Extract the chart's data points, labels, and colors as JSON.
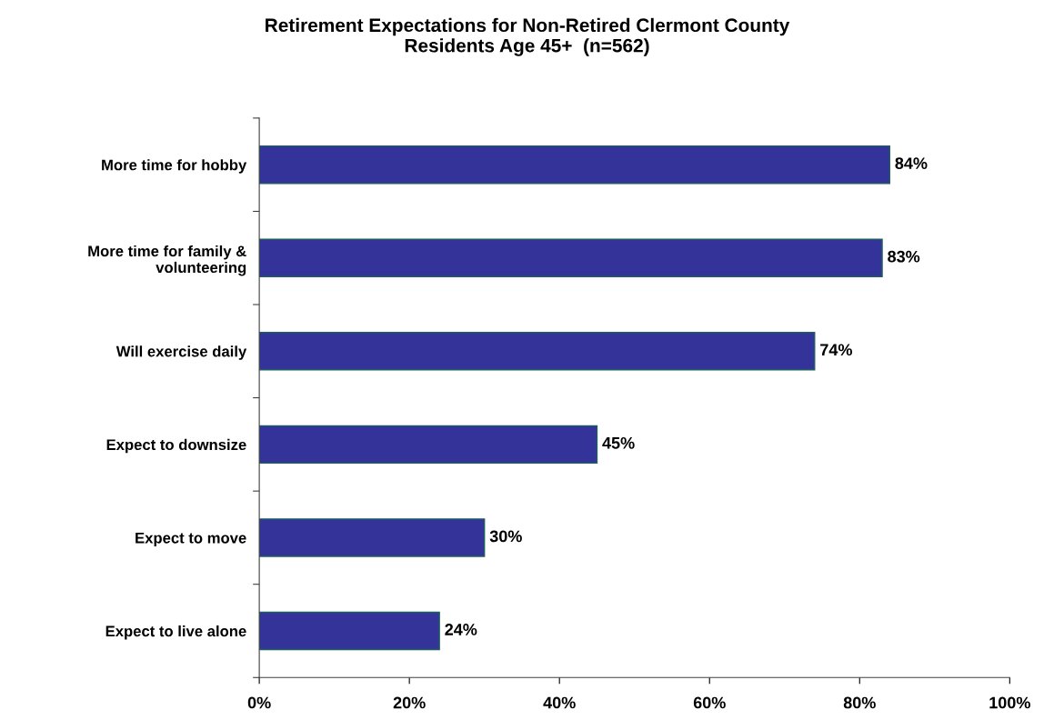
{
  "chart_data": {
    "type": "bar",
    "orientation": "horizontal",
    "title": "Retirement Expectations for Non-Retired Clermont County\nResidents Age 45+  (n=562)",
    "categories": [
      "More time for hobby",
      "More time for family &\nvolunteering",
      "Will exercise daily",
      "Expect to downsize",
      "Expect to move",
      "Expect to live alone"
    ],
    "values": [
      84,
      83,
      74,
      45,
      30,
      24
    ],
    "value_labels": [
      "84%",
      "83%",
      "74%",
      "45%",
      "30%",
      "24%"
    ],
    "color": "#333399",
    "xlim": [
      0,
      100
    ],
    "xticks": [
      {
        "value": 0,
        "label": "0%"
      },
      {
        "value": 20,
        "label": "20%"
      },
      {
        "value": 40,
        "label": "40%"
      },
      {
        "value": 60,
        "label": "60%"
      },
      {
        "value": 80,
        "label": "80%"
      },
      {
        "value": 100,
        "label": "100%"
      }
    ],
    "grid": false,
    "legend": false
  }
}
